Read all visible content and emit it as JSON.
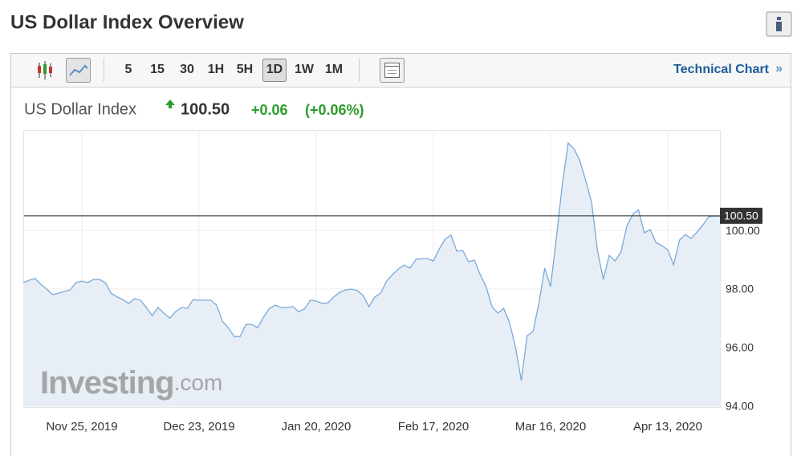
{
  "header": {
    "title": "US Dollar Index Overview"
  },
  "toolbar": {
    "intervals": [
      "5",
      "15",
      "30",
      "1H",
      "5H",
      "1D",
      "1W",
      "1M"
    ],
    "selected": "1D",
    "link": "Technical Chart",
    "link_arrow": "»"
  },
  "quote": {
    "name": "US Dollar Index",
    "change": "+0.06",
    "change_percent": "(+0.06%)"
  },
  "watermark": {
    "brand": "Investing",
    "suffix": ".com"
  },
  "chart_data": {
    "type": "area",
    "categories": [
      null,
      null,
      null,
      null,
      null,
      null,
      null,
      null,
      null,
      null,
      "Nov 25, 2019",
      null,
      null,
      null,
      null,
      null,
      null,
      null,
      null,
      null,
      null,
      null,
      null,
      null,
      null,
      null,
      null,
      null,
      null,
      null,
      "Dec 23, 2019",
      null,
      null,
      null,
      null,
      null,
      null,
      null,
      null,
      null,
      null,
      null,
      null,
      null,
      null,
      null,
      null,
      null,
      null,
      null,
      "Jan 20, 2020",
      null,
      null,
      null,
      null,
      null,
      null,
      null,
      null,
      null,
      null,
      null,
      null,
      null,
      null,
      null,
      null,
      null,
      null,
      null,
      "Feb 17, 2020",
      null,
      null,
      null,
      null,
      null,
      null,
      null,
      null,
      null,
      null,
      null,
      null,
      null,
      null,
      null,
      null,
      null,
      null,
      null,
      "Mar 16, 2020",
      null,
      null,
      null,
      null,
      null,
      null,
      null,
      null,
      null,
      null,
      null,
      null,
      null,
      null,
      null,
      null,
      null,
      null,
      null,
      "Apr 13, 2020",
      null,
      null,
      null,
      null,
      null,
      null,
      null,
      null
    ],
    "series": [
      {
        "name": "US Dollar Index",
        "color": "#7aaad8",
        "fill": "#e7eef6",
        "values": [
          98.22,
          98.3,
          98.36,
          98.16,
          98.0,
          97.81,
          97.86,
          97.92,
          97.97,
          98.22,
          98.27,
          98.22,
          98.33,
          98.33,
          98.22,
          97.86,
          97.73,
          97.64,
          97.51,
          97.67,
          97.62,
          97.37,
          97.1,
          97.37,
          97.18,
          97.01,
          97.23,
          97.37,
          97.34,
          97.64,
          97.62,
          97.62,
          97.62,
          97.45,
          96.9,
          96.68,
          96.38,
          96.38,
          96.79,
          96.79,
          96.68,
          97.04,
          97.34,
          97.45,
          97.37,
          97.37,
          97.4,
          97.23,
          97.32,
          97.62,
          97.59,
          97.51,
          97.53,
          97.73,
          97.89,
          97.97,
          98.0,
          97.95,
          97.78,
          97.4,
          97.73,
          97.86,
          98.27,
          98.49,
          98.68,
          98.82,
          98.71,
          99.01,
          99.04,
          99.04,
          98.96,
          99.37,
          99.7,
          99.84,
          99.29,
          99.32,
          98.93,
          98.99,
          98.49,
          98.08,
          97.4,
          97.18,
          97.34,
          96.85,
          96.03,
          94.88,
          96.41,
          96.55,
          97.51,
          98.71,
          98.08,
          99.78,
          101.56,
          102.99,
          102.79,
          102.38,
          101.7,
          100.96,
          99.32,
          98.33,
          99.15,
          98.96,
          99.26,
          100.14,
          100.55,
          100.71,
          99.92,
          100.03,
          99.59,
          99.48,
          99.34,
          98.82,
          99.67,
          99.86,
          99.73,
          99.95,
          100.19,
          100.47,
          100.49
        ]
      }
    ],
    "last_price": {
      "value": 100.5,
      "label": "100.50"
    },
    "ylim": [
      94,
      103.4
    ],
    "yticks": [
      {
        "value": 94,
        "label": "94.00"
      },
      {
        "value": 96,
        "label": "96.00"
      },
      {
        "value": 98,
        "label": "98.00"
      },
      {
        "value": 100,
        "label": "100.00"
      }
    ],
    "grid": true
  }
}
